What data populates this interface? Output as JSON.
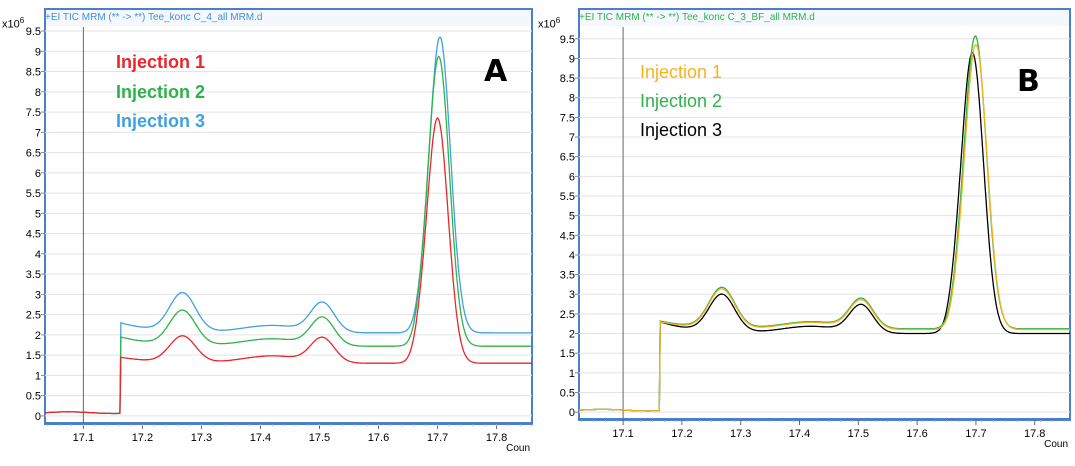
{
  "chart_data": [
    {
      "type": "line",
      "panel": "A",
      "title": "+EI TIC MRM (** -> **) Tee_konc C_4_all MRM.d",
      "title_color": "#3f8fd8",
      "scale_base": "x10",
      "scale_exp": "6",
      "xlabel": "Coun",
      "ylim": [
        -0.2,
        9.6
      ],
      "xlim": [
        17.035,
        17.86
      ],
      "xticks": [
        "17.1",
        "17.2",
        "17.3",
        "17.4",
        "17.5",
        "17.6",
        "17.7",
        "17.8"
      ],
      "yticks": [
        "0",
        "0.5",
        "1",
        "1.5",
        "2",
        "2.5",
        "3",
        "3.5",
        "4",
        "4.5",
        "5",
        "5.5",
        "6",
        "6.5",
        "7",
        "7.5",
        "8",
        "8.5",
        "9",
        "9.5"
      ],
      "marker_x": 17.1,
      "panel_letter": "A",
      "series": [
        {
          "name": "Injection 1",
          "color": "#e8262b",
          "baseline": 0.08,
          "base_after": 1.3,
          "jump_level": 1.45,
          "hump1": 0.65,
          "hump2": 0.6,
          "peak": 6.05,
          "peak_x": 17.7,
          "peak_w": 0.018
        },
        {
          "name": "Injection 2",
          "color": "#2fb24b",
          "baseline": 0.08,
          "base_after": 1.72,
          "jump_level": 1.95,
          "hump1": 0.85,
          "hump2": 0.68,
          "peak": 7.15,
          "peak_x": 17.702,
          "peak_w": 0.018
        },
        {
          "name": "Injection 3",
          "color": "#3ea1e0",
          "baseline": 0.08,
          "base_after": 2.05,
          "jump_level": 2.3,
          "hump1": 0.95,
          "hump2": 0.72,
          "peak": 7.3,
          "peak_x": 17.704,
          "peak_w": 0.018
        }
      ]
    },
    {
      "type": "line",
      "panel": "B",
      "title": "+EI TIC MRM (** -> **) Tee_konc C_3_BF_all MRM.d",
      "title_color": "#2fb24b",
      "scale_base": "x10",
      "scale_exp": "6",
      "xlabel": "Coun",
      "ylim": [
        -0.2,
        9.8
      ],
      "xlim": [
        17.025,
        17.86
      ],
      "xticks": [
        "17.1",
        "17.2",
        "17.3",
        "17.4",
        "17.5",
        "17.6",
        "17.7",
        "17.8"
      ],
      "yticks": [
        "0",
        "0.5",
        "1",
        "1.5",
        "2",
        "2.5",
        "3",
        "3.5",
        "4",
        "4.5",
        "5",
        "5.5",
        "6",
        "6.5",
        "7",
        "7.5",
        "8",
        "8.5",
        "9",
        "9.5"
      ],
      "marker_x": 17.1,
      "panel_letter": "B",
      "series": [
        {
          "name": "Injection 1",
          "color": "#f5b31b",
          "baseline": 0.05,
          "base_after": 2.1,
          "jump_level": 2.3,
          "hump1": 1.0,
          "hump2": 0.72,
          "peak": 7.25,
          "peak_x": 17.7,
          "peak_w": 0.019
        },
        {
          "name": "Injection 2",
          "color": "#2fb24b",
          "baseline": 0.05,
          "base_after": 2.12,
          "jump_level": 2.32,
          "hump1": 1.02,
          "hump2": 0.74,
          "peak": 7.45,
          "peak_x": 17.699,
          "peak_w": 0.019
        },
        {
          "name": "Injection 3",
          "color": "#000000",
          "baseline": 0.05,
          "base_after": 2.0,
          "jump_level": 2.3,
          "hump1": 0.95,
          "hump2": 0.7,
          "peak": 7.15,
          "peak_x": 17.694,
          "peak_w": 0.019
        }
      ]
    }
  ]
}
